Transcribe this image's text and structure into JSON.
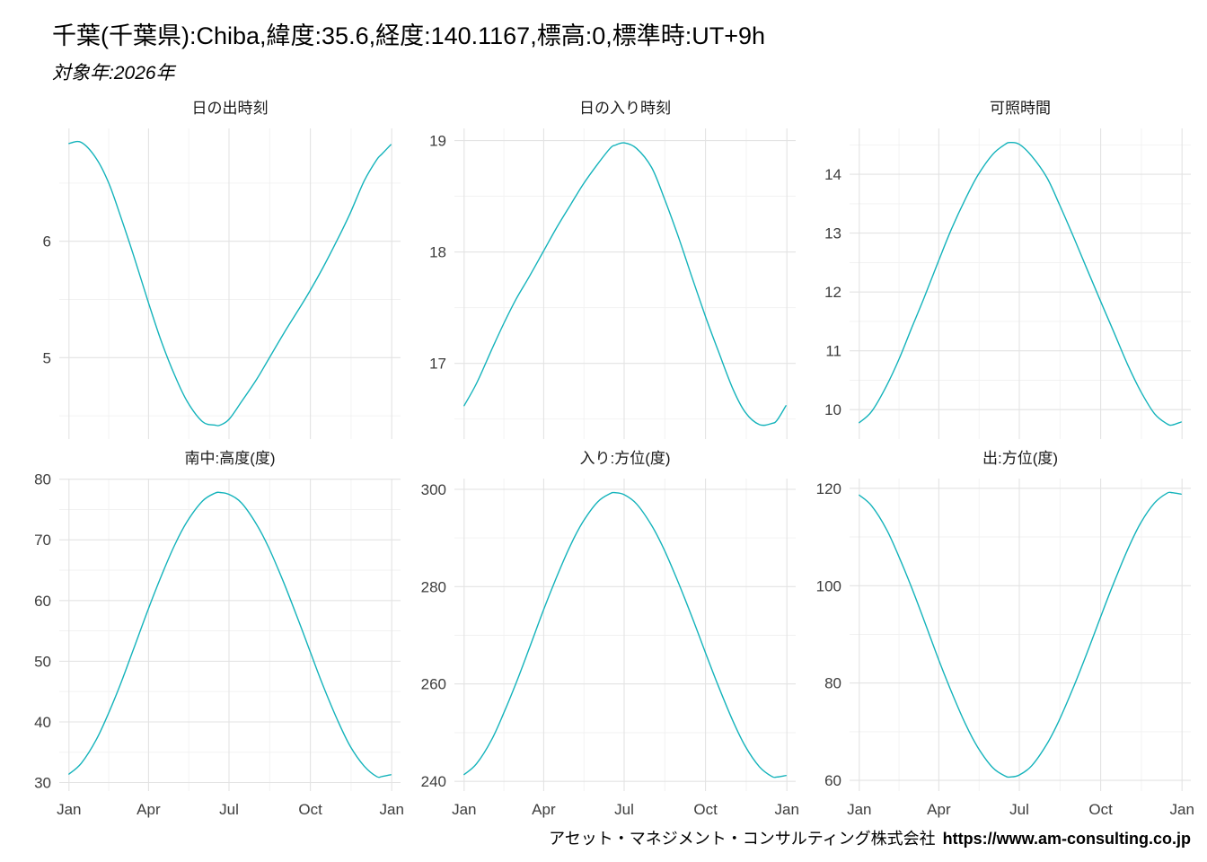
{
  "header": {
    "title": "千葉(千葉県):Chiba,緯度:35.6,経度:140.1167,標高:0,標準時:UT+9h",
    "subtitle": "対象年:2026年"
  },
  "footer": {
    "company": "アセット・マネジメント・コンサルティング株式会社",
    "url": "https://www.am-consulting.co.jp"
  },
  "style": {
    "line_color": "#14b3bb",
    "grid_major": "#e3e3e3",
    "grid_minor": "#f1f1f1",
    "axis_text": "#3d3d3d",
    "panel_title": "#1b1b1b"
  },
  "chart_data": [
    {
      "type": "line",
      "title": "日の出時刻",
      "ylabel": "",
      "x_days": [
        1,
        15,
        32,
        46,
        60,
        74,
        91,
        105,
        121,
        135,
        152,
        166,
        172,
        182,
        196,
        213,
        227,
        244,
        258,
        274,
        288,
        305,
        319,
        335,
        349,
        355,
        365
      ],
      "values": [
        6.84,
        6.85,
        6.71,
        6.5,
        6.2,
        5.88,
        5.47,
        5.15,
        4.84,
        4.62,
        4.45,
        4.42,
        4.42,
        4.47,
        4.62,
        4.81,
        4.99,
        5.21,
        5.38,
        5.58,
        5.77,
        6.02,
        6.24,
        6.52,
        6.7,
        6.75,
        6.83
      ],
      "ylim": [
        4.3,
        6.97
      ],
      "yticks": [
        5,
        6
      ],
      "xdomain": [
        -10,
        376
      ],
      "xticks_days": [
        1,
        91,
        182,
        274,
        366
      ],
      "xticks_labels": [
        "Jan",
        "Apr",
        "Jul",
        "Oct",
        "Jan"
      ],
      "show_x_labels": false
    },
    {
      "type": "line",
      "title": "日の入り時刻",
      "ylabel": "",
      "x_days": [
        1,
        15,
        32,
        46,
        60,
        74,
        91,
        105,
        121,
        135,
        152,
        166,
        172,
        182,
        196,
        213,
        227,
        244,
        258,
        274,
        288,
        305,
        319,
        335,
        349,
        355,
        365
      ],
      "values": [
        16.62,
        16.82,
        17.12,
        17.36,
        17.58,
        17.77,
        18.01,
        18.21,
        18.42,
        18.6,
        18.79,
        18.93,
        18.96,
        18.98,
        18.93,
        18.76,
        18.49,
        18.12,
        17.79,
        17.42,
        17.12,
        16.77,
        16.56,
        16.45,
        16.46,
        16.49,
        16.62
      ],
      "ylim": [
        16.32,
        19.11
      ],
      "yticks": [
        17,
        18,
        19
      ],
      "xdomain": [
        -10,
        376
      ],
      "xticks_days": [
        1,
        91,
        182,
        274,
        366
      ],
      "xticks_labels": [
        "Jan",
        "Apr",
        "Jul",
        "Oct",
        "Jan"
      ],
      "show_x_labels": false
    },
    {
      "type": "line",
      "title": "可照時間",
      "ylabel": "",
      "x_days": [
        1,
        15,
        32,
        46,
        60,
        74,
        91,
        105,
        121,
        135,
        152,
        166,
        172,
        182,
        196,
        213,
        227,
        244,
        258,
        274,
        288,
        305,
        319,
        335,
        349,
        355,
        365
      ],
      "values": [
        9.78,
        9.97,
        10.41,
        10.86,
        11.38,
        11.89,
        12.54,
        13.06,
        13.58,
        13.98,
        14.34,
        14.51,
        14.54,
        14.51,
        14.31,
        13.95,
        13.5,
        12.91,
        12.41,
        11.84,
        11.35,
        10.75,
        10.32,
        9.93,
        9.76,
        9.74,
        9.79
      ],
      "ylim": [
        9.5,
        14.78
      ],
      "yticks": [
        10,
        11,
        12,
        13,
        14
      ],
      "xdomain": [
        -10,
        376
      ],
      "xticks_days": [
        1,
        91,
        182,
        274,
        366
      ],
      "xticks_labels": [
        "Jan",
        "Apr",
        "Jul",
        "Oct",
        "Jan"
      ],
      "show_x_labels": false
    },
    {
      "type": "line",
      "title": "南中:高度(度)",
      "ylabel": "",
      "x_days": [
        1,
        15,
        32,
        46,
        60,
        74,
        91,
        105,
        121,
        135,
        152,
        166,
        172,
        182,
        196,
        213,
        227,
        244,
        258,
        274,
        288,
        305,
        319,
        335,
        349,
        355,
        365
      ],
      "values": [
        31.4,
        33.2,
        37.1,
        41.5,
        46.5,
        52.0,
        58.7,
        63.9,
        69.3,
        73.1,
        76.4,
        77.7,
        77.8,
        77.5,
        76.1,
        72.6,
        68.7,
        62.9,
        57.7,
        51.5,
        46.1,
        40.2,
        36.0,
        32.7,
        31.0,
        31.0,
        31.3
      ],
      "ylim": [
        28.6,
        80.1
      ],
      "yticks": [
        30,
        40,
        50,
        60,
        70,
        80
      ],
      "xdomain": [
        -10,
        376
      ],
      "xticks_days": [
        1,
        91,
        182,
        274,
        366
      ],
      "xticks_labels": [
        "Jan",
        "Apr",
        "Jul",
        "Oct",
        "Jan"
      ],
      "show_x_labels": true
    },
    {
      "type": "line",
      "title": "入り:方位(度)",
      "ylabel": "",
      "x_days": [
        1,
        15,
        32,
        46,
        60,
        74,
        91,
        105,
        121,
        135,
        152,
        166,
        172,
        182,
        196,
        213,
        227,
        244,
        258,
        274,
        288,
        305,
        319,
        335,
        349,
        355,
        365
      ],
      "values": [
        241.4,
        243.6,
        248.5,
        254.1,
        260.3,
        267.0,
        275.3,
        281.7,
        288.4,
        293.2,
        297.4,
        299.1,
        299.3,
        298.9,
        297.0,
        292.6,
        287.7,
        280.5,
        274.1,
        266.4,
        259.8,
        252.4,
        247.2,
        243.0,
        241.0,
        240.9,
        241.2
      ],
      "ylim": [
        238.0,
        302.2
      ],
      "yticks": [
        240,
        260,
        280,
        300
      ],
      "xdomain": [
        -10,
        376
      ],
      "xticks_days": [
        1,
        91,
        182,
        274,
        366
      ],
      "xticks_labels": [
        "Jan",
        "Apr",
        "Jul",
        "Oct",
        "Jan"
      ],
      "show_x_labels": true
    },
    {
      "type": "line",
      "title": "出:方位(度)",
      "ylabel": "",
      "x_days": [
        1,
        15,
        32,
        46,
        60,
        74,
        91,
        105,
        121,
        135,
        152,
        166,
        172,
        182,
        196,
        213,
        227,
        244,
        258,
        274,
        288,
        305,
        319,
        335,
        349,
        355,
        365
      ],
      "values": [
        118.6,
        116.4,
        111.5,
        105.9,
        99.7,
        93.0,
        84.7,
        78.3,
        71.6,
        66.8,
        62.6,
        60.9,
        60.7,
        61.1,
        63.0,
        67.4,
        72.3,
        79.5,
        85.9,
        93.6,
        100.2,
        107.6,
        112.8,
        117.0,
        119.0,
        119.1,
        118.8
      ],
      "ylim": [
        57.8,
        122.0
      ],
      "yticks": [
        60,
        80,
        100,
        120
      ],
      "xdomain": [
        -10,
        376
      ],
      "xticks_days": [
        1,
        91,
        182,
        274,
        366
      ],
      "xticks_labels": [
        "Jan",
        "Apr",
        "Jul",
        "Oct",
        "Jan"
      ],
      "show_x_labels": true
    }
  ]
}
